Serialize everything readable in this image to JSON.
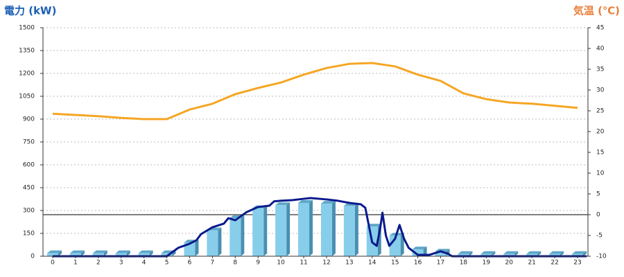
{
  "chart_data": {
    "type": "bar",
    "y_label": "電力 (kW)",
    "y2_label": "気温 (℃)",
    "categories": [
      "0",
      "1",
      "2",
      "3",
      "4",
      "5",
      "6",
      "7",
      "8",
      "9",
      "10",
      "11",
      "12",
      "13",
      "14",
      "15",
      "16",
      "17",
      "18",
      "19",
      "20",
      "21",
      "22",
      "23"
    ],
    "ylim": [
      0,
      1500
    ],
    "yticks": [
      0,
      150,
      300,
      450,
      600,
      750,
      900,
      1050,
      1200,
      1350,
      1500
    ],
    "y2lim": [
      -10,
      45
    ],
    "y2ticks": [
      -10,
      -5,
      0,
      5,
      10,
      15,
      20,
      25,
      30,
      35,
      40,
      45
    ],
    "grid": true,
    "series": [
      {
        "type": "bar",
        "color": "#87ceeb",
        "values": [
          20,
          20,
          20,
          20,
          20,
          20,
          90,
          170,
          250,
          315,
          335,
          350,
          345,
          330,
          195,
          135,
          45,
          30,
          15,
          15,
          15,
          15,
          15,
          15
        ]
      },
      {
        "type": "line",
        "color": "#0a1a8c",
        "x": [
          0,
          5,
          5.5,
          6,
          6.3,
          6.5,
          7,
          7.5,
          7.7,
          8,
          8.5,
          9,
          9.5,
          9.7,
          10,
          10.5,
          11,
          11.3,
          12,
          12.5,
          13,
          13.5,
          13.7,
          14,
          14.2,
          14.35,
          14.45,
          14.6,
          14.75,
          15,
          15.2,
          15.4,
          15.6,
          16,
          16.5,
          17,
          17.3,
          17.5,
          23.4
        ],
        "values": [
          0,
          0,
          55,
          82,
          105,
          145,
          190,
          214,
          250,
          236,
          290,
          323,
          332,
          360,
          364,
          368,
          377,
          382,
          373,
          364,
          350,
          341,
          318,
          91,
          68,
          182,
          286,
          136,
          68,
          114,
          205,
          114,
          55,
          9,
          9,
          32,
          18,
          0,
          0
        ]
      },
      {
        "type": "line",
        "axis": "y2",
        "color": "#f5a623",
        "values": [
          24.3,
          24,
          23.7,
          23.3,
          23,
          23,
          25.3,
          26.7,
          29,
          30.5,
          31.8,
          33.7,
          35.3,
          36.3,
          36.5,
          35.7,
          33.7,
          32.2,
          29.2,
          27.8,
          27,
          26.7,
          26.2,
          25.7
        ]
      }
    ]
  }
}
